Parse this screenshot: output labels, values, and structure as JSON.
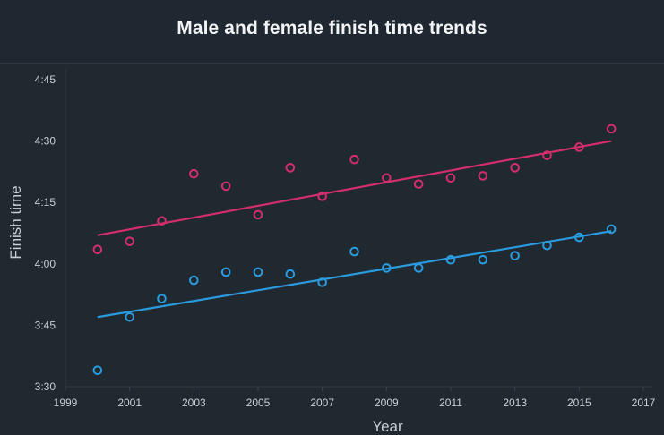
{
  "title": "Male and female finish time trends",
  "chart_data": {
    "type": "scatter",
    "title": "Male and female finish time trends",
    "xlabel": "Year",
    "ylabel": "Finish time",
    "xlim": [
      1999,
      2017
    ],
    "ylim": [
      210,
      285
    ],
    "x_ticks": [
      1999,
      2001,
      2003,
      2005,
      2007,
      2009,
      2011,
      2013,
      2015,
      2017
    ],
    "y_ticks": [
      {
        "value": 210,
        "label": "3:30"
      },
      {
        "value": 225,
        "label": "3:45"
      },
      {
        "value": 240,
        "label": "4:00"
      },
      {
        "value": 255,
        "label": "4:15"
      },
      {
        "value": 270,
        "label": "4:30"
      },
      {
        "value": 285,
        "label": "4:45"
      }
    ],
    "grid": false,
    "legend": "none",
    "series": [
      {
        "color": "#d12e6b",
        "x": [
          2000,
          2001,
          2002,
          2003,
          2004,
          2005,
          2006,
          2007,
          2008,
          2009,
          2010,
          2011,
          2012,
          2013,
          2014,
          2015,
          2016
        ],
        "y": [
          243.5,
          245.5,
          250.5,
          262.0,
          259.0,
          252.0,
          263.5,
          256.5,
          265.5,
          261.0,
          259.5,
          261.0,
          261.5,
          263.5,
          266.5,
          268.5,
          273.0
        ],
        "trend": [
          247,
          270
        ]
      },
      {
        "color": "#2a9bde",
        "x": [
          2000,
          2001,
          2002,
          2003,
          2004,
          2005,
          2006,
          2007,
          2008,
          2009,
          2010,
          2011,
          2012,
          2013,
          2014,
          2015,
          2016
        ],
        "y": [
          214.0,
          227.0,
          231.5,
          236.0,
          238.0,
          238.0,
          237.5,
          235.5,
          243.0,
          239.0,
          239.0,
          241.0,
          241.0,
          242.0,
          244.5,
          246.5,
          248.5
        ],
        "trend": [
          227,
          248
        ]
      }
    ]
  }
}
